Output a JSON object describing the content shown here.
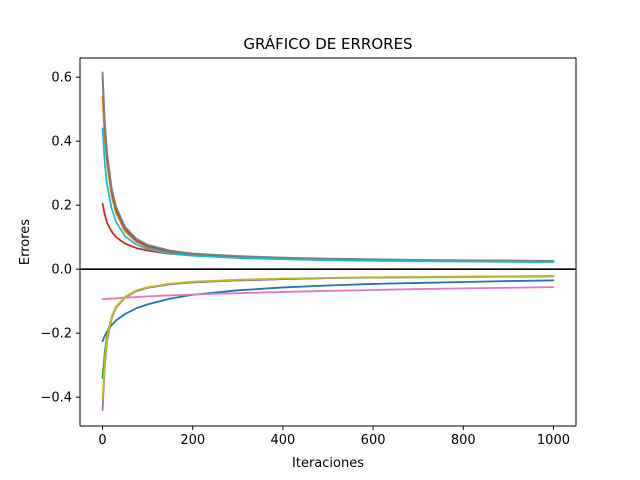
{
  "chart_data": {
    "type": "line",
    "title": "GRÁFICO DE ERRORES",
    "xlabel": "Iteraciones",
    "ylabel": "Errores",
    "xlim": [
      -50,
      1050
    ],
    "ylim": [
      -0.49,
      0.66
    ],
    "xticks": [
      {
        "value": 0,
        "label": "0"
      },
      {
        "value": 200,
        "label": "200"
      },
      {
        "value": 400,
        "label": "400"
      },
      {
        "value": 600,
        "label": "600"
      },
      {
        "value": 800,
        "label": "800"
      },
      {
        "value": 1000,
        "label": "1000"
      }
    ],
    "yticks": [
      {
        "value": -0.4,
        "label": "−0.4"
      },
      {
        "value": -0.2,
        "label": "−0.2"
      },
      {
        "value": 0.0,
        "label": "0.0"
      },
      {
        "value": 0.2,
        "label": "0.2"
      },
      {
        "value": 0.4,
        "label": "0.4"
      },
      {
        "value": 0.6,
        "label": "0.6"
      }
    ],
    "grid": false,
    "legend": false,
    "reference_line": {
      "y": 0,
      "color": "#000000"
    },
    "x": [
      0,
      5,
      10,
      20,
      30,
      50,
      75,
      100,
      150,
      200,
      300,
      400,
      500,
      600,
      700,
      800,
      900,
      1000
    ],
    "series": [
      {
        "color": "#1f77b4",
        "values": [
          -0.225,
          -0.208,
          -0.195,
          -0.175,
          -0.16,
          -0.14,
          -0.122,
          -0.11,
          -0.092,
          -0.08,
          -0.066,
          -0.057,
          -0.051,
          -0.046,
          -0.043,
          -0.04,
          -0.037,
          -0.035
        ]
      },
      {
        "color": "#ff7f0e",
        "values": [
          0.54,
          0.41,
          0.33,
          0.23,
          0.175,
          0.118,
          0.085,
          0.068,
          0.052,
          0.045,
          0.038,
          0.034,
          0.031,
          0.029,
          0.027,
          0.026,
          0.025,
          0.024
        ]
      },
      {
        "color": "#2ca02c",
        "values": [
          -0.34,
          -0.26,
          -0.205,
          -0.15,
          -0.118,
          -0.088,
          -0.068,
          -0.058,
          -0.047,
          -0.041,
          -0.035,
          -0.031,
          -0.028,
          -0.026,
          -0.025,
          -0.024,
          -0.023,
          -0.022
        ]
      },
      {
        "color": "#d62728",
        "values": [
          0.205,
          0.17,
          0.145,
          0.118,
          0.1,
          0.08,
          0.066,
          0.058,
          0.048,
          0.043,
          0.036,
          0.032,
          0.029,
          0.027,
          0.026,
          0.025,
          0.024,
          0.023
        ]
      },
      {
        "color": "#9467bd",
        "values": [
          -0.44,
          -0.3,
          -0.225,
          -0.155,
          -0.12,
          -0.088,
          -0.068,
          -0.058,
          -0.047,
          -0.041,
          -0.035,
          -0.031,
          -0.028,
          -0.026,
          -0.025,
          -0.024,
          -0.023,
          -0.022
        ]
      },
      {
        "color": "#8c564b",
        "values": [
          0.6,
          0.44,
          0.35,
          0.245,
          0.185,
          0.125,
          0.09,
          0.072,
          0.055,
          0.047,
          0.039,
          0.035,
          0.032,
          0.03,
          0.028,
          0.027,
          0.026,
          0.025
        ]
      },
      {
        "color": "#e377c2",
        "values": [
          -0.094,
          -0.093,
          -0.093,
          -0.092,
          -0.091,
          -0.089,
          -0.087,
          -0.085,
          -0.082,
          -0.079,
          -0.075,
          -0.071,
          -0.068,
          -0.065,
          -0.062,
          -0.06,
          -0.058,
          -0.056
        ]
      },
      {
        "color": "#7f7f7f",
        "values": [
          0.615,
          0.46,
          0.365,
          0.255,
          0.195,
          0.132,
          0.095,
          0.076,
          0.058,
          0.049,
          0.041,
          0.036,
          0.033,
          0.031,
          0.029,
          0.028,
          0.027,
          0.026
        ]
      },
      {
        "color": "#bcbd22",
        "values": [
          -0.41,
          -0.285,
          -0.215,
          -0.15,
          -0.117,
          -0.086,
          -0.066,
          -0.056,
          -0.045,
          -0.039,
          -0.033,
          -0.029,
          -0.027,
          -0.025,
          -0.024,
          -0.023,
          -0.022,
          -0.021
        ]
      },
      {
        "color": "#17becf",
        "values": [
          0.44,
          0.33,
          0.265,
          0.19,
          0.148,
          0.103,
          0.077,
          0.063,
          0.049,
          0.042,
          0.035,
          0.031,
          0.028,
          0.026,
          0.025,
          0.024,
          0.023,
          0.022
        ]
      }
    ]
  }
}
